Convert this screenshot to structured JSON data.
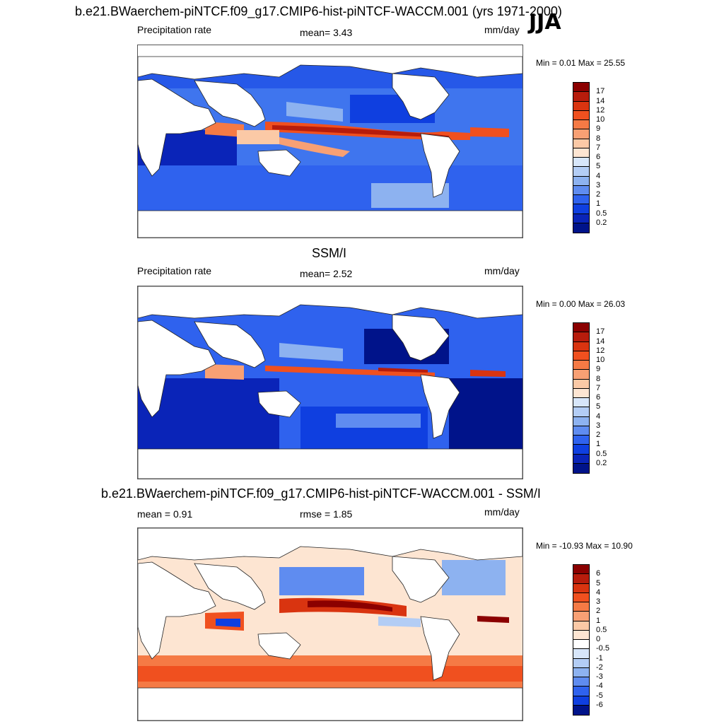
{
  "header": {
    "main_title": "b.e21.BWaerchem-piNTCF.f09_g17.CMIP6-hist-piNTCF-WACCM.001 (yrs 1971-2000)",
    "season": "JJA"
  },
  "panels": [
    {
      "title": "",
      "left_label": "Precipitation rate",
      "center_label": "mean=   3.43",
      "right_label": "mm/day",
      "minmax": "Min =   0.01 Max =  25.55",
      "colorbar": {
        "labels": [
          "17",
          "14",
          "12",
          "10",
          "9",
          "8",
          "7",
          "6",
          "5",
          "4",
          "3",
          "2",
          "1",
          "0.5",
          "0.2"
        ],
        "colors": [
          "#8b0000",
          "#b71c0c",
          "#d93410",
          "#f0501f",
          "#f57a45",
          "#f8a074",
          "#fbc9a6",
          "#fde5d2",
          "#d7e6fa",
          "#b3cdf5",
          "#8db2f0",
          "#5f8cf0",
          "#2f62ee",
          "#0f3fe0",
          "#0a24b8",
          "#00138a"
        ]
      },
      "map_style": "model"
    },
    {
      "title": "SSM/I",
      "left_label": "Precipitation rate",
      "center_label": "mean=   2.52",
      "right_label": "mm/day",
      "minmax": "Min =   0.00 Max =  26.03",
      "colorbar": {
        "labels": [
          "17",
          "14",
          "12",
          "10",
          "9",
          "8",
          "7",
          "6",
          "5",
          "4",
          "3",
          "2",
          "1",
          "0.5",
          "0.2"
        ],
        "colors": [
          "#8b0000",
          "#b71c0c",
          "#d93410",
          "#f0501f",
          "#f57a45",
          "#f8a074",
          "#fbc9a6",
          "#fde5d2",
          "#d7e6fa",
          "#b3cdf5",
          "#8db2f0",
          "#5f8cf0",
          "#2f62ee",
          "#0f3fe0",
          "#0a24b8",
          "#00138a"
        ]
      },
      "map_style": "obs"
    },
    {
      "title": "b.e21.BWaerchem-piNTCF.f09_g17.CMIP6-hist-piNTCF-WACCM.001 - SSM/I",
      "left_label": "mean =   0.91",
      "center_label": "rmse =   1.85",
      "right_label": "mm/day",
      "minmax": "Min = -10.93 Max =  10.90",
      "colorbar": {
        "labels": [
          "6",
          "5",
          "4",
          "3",
          "2",
          "1",
          "0.5",
          "0",
          "-0.5",
          "-1",
          "-2",
          "-3",
          "-4",
          "-5",
          "-6"
        ],
        "colors": [
          "#8b0000",
          "#b71c0c",
          "#d93410",
          "#f0501f",
          "#f57a45",
          "#f8a074",
          "#fbc9a6",
          "#fde5d2",
          "#ffffff",
          "#d7e6fa",
          "#b3cdf5",
          "#8db2f0",
          "#5f8cf0",
          "#2f62ee",
          "#0f3fe0",
          "#00138a"
        ]
      },
      "map_style": "diff"
    }
  ]
}
